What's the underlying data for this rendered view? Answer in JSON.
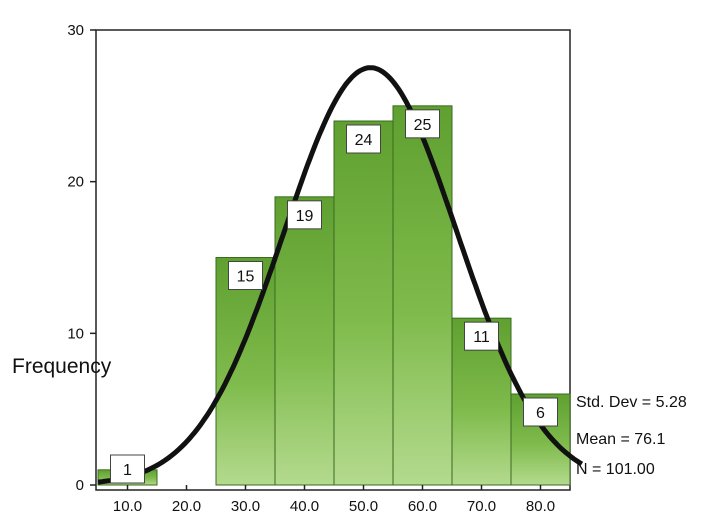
{
  "chart_data": {
    "type": "bar",
    "subtype": "histogram",
    "categories": [
      "10.0",
      "20.0",
      "30.0",
      "40.0",
      "50.0",
      "60.0",
      "70.0",
      "80.0"
    ],
    "values": [
      1,
      0,
      15,
      19,
      24,
      25,
      11,
      6
    ],
    "data_labels": [
      "1",
      "",
      "15",
      "19",
      "24",
      "25",
      "11",
      "6"
    ],
    "ylabel": "Frequency",
    "xlabel": "",
    "ylim": [
      0,
      30
    ],
    "y_ticks": [
      "0",
      "10",
      "20",
      "30"
    ],
    "grid": false,
    "normal_curve": true,
    "stats": {
      "std_dev": "Std. Dev = 5.28",
      "mean": "Mean = 76.1",
      "n": "N = 101.00"
    },
    "colors": {
      "bar": "#6aaa3a",
      "bar_light": "#a6d27a",
      "curve": "#111111"
    }
  }
}
